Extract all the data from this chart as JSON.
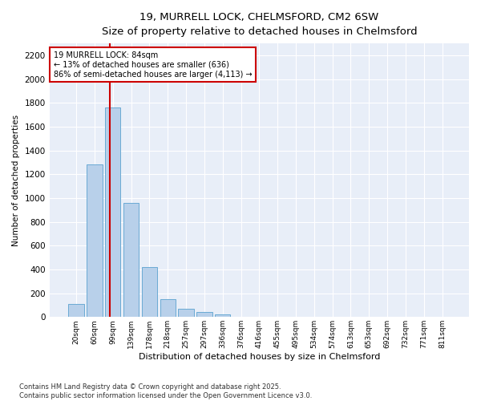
{
  "title_line1": "19, MURRELL LOCK, CHELMSFORD, CM2 6SW",
  "title_line2": "Size of property relative to detached houses in Chelmsford",
  "xlabel": "Distribution of detached houses by size in Chelmsford",
  "ylabel": "Number of detached properties",
  "bar_labels": [
    "20sqm",
    "60sqm",
    "99sqm",
    "139sqm",
    "178sqm",
    "218sqm",
    "257sqm",
    "297sqm",
    "336sqm",
    "376sqm",
    "416sqm",
    "455sqm",
    "495sqm",
    "534sqm",
    "574sqm",
    "613sqm",
    "653sqm",
    "692sqm",
    "732sqm",
    "771sqm",
    "811sqm"
  ],
  "bar_values": [
    110,
    1280,
    1760,
    960,
    420,
    150,
    70,
    45,
    25,
    0,
    0,
    0,
    0,
    0,
    0,
    0,
    0,
    0,
    0,
    0,
    0
  ],
  "bar_color": "#b8d0ea",
  "bar_edge_color": "#6aaad4",
  "pct_smaller": 13,
  "n_smaller": 636,
  "pct_larger": 86,
  "n_larger": 4113,
  "vline_color": "#cc0000",
  "annotation_box_color": "#cc0000",
  "ylim": [
    0,
    2300
  ],
  "yticks": [
    0,
    200,
    400,
    600,
    800,
    1000,
    1200,
    1400,
    1600,
    1800,
    2000,
    2200
  ],
  "bg_color": "#e8eef8",
  "grid_color": "#ffffff",
  "fig_bg": "#ffffff",
  "footnote_line1": "Contains HM Land Registry data © Crown copyright and database right 2025.",
  "footnote_line2": "Contains public sector information licensed under the Open Government Licence v3.0."
}
